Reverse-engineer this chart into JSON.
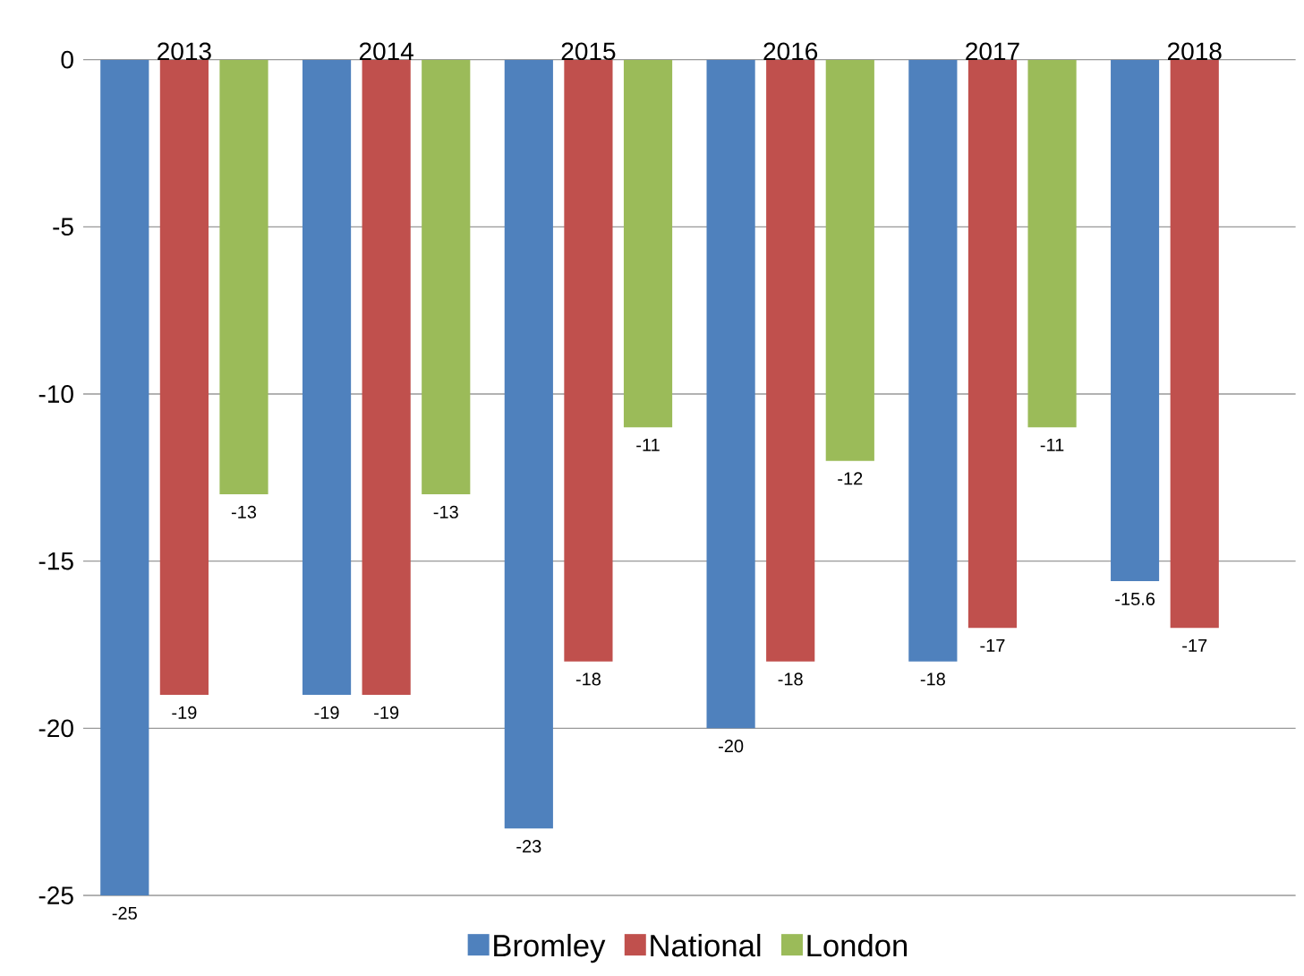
{
  "chart_data": {
    "type": "bar",
    "categories": [
      "2013",
      "2014",
      "2015",
      "2016",
      "2017",
      "2018"
    ],
    "series": [
      {
        "name": "Bromley",
        "color": "#4f81bd",
        "values": [
          -25,
          -19,
          -23,
          -20,
          -18,
          -15.6
        ]
      },
      {
        "name": "National",
        "color": "#c0504d",
        "values": [
          -19,
          -19,
          -18,
          -18,
          -17,
          -17
        ]
      },
      {
        "name": "London",
        "color": "#9bbb59",
        "values": [
          -13,
          -13,
          -11,
          -12,
          -11,
          null
        ]
      }
    ],
    "ylim": [
      -25,
      0
    ],
    "yticks": [
      -25,
      -20,
      -15,
      -10,
      -5,
      0
    ],
    "grid": "y",
    "legend": "bottom",
    "data_labels": true
  }
}
